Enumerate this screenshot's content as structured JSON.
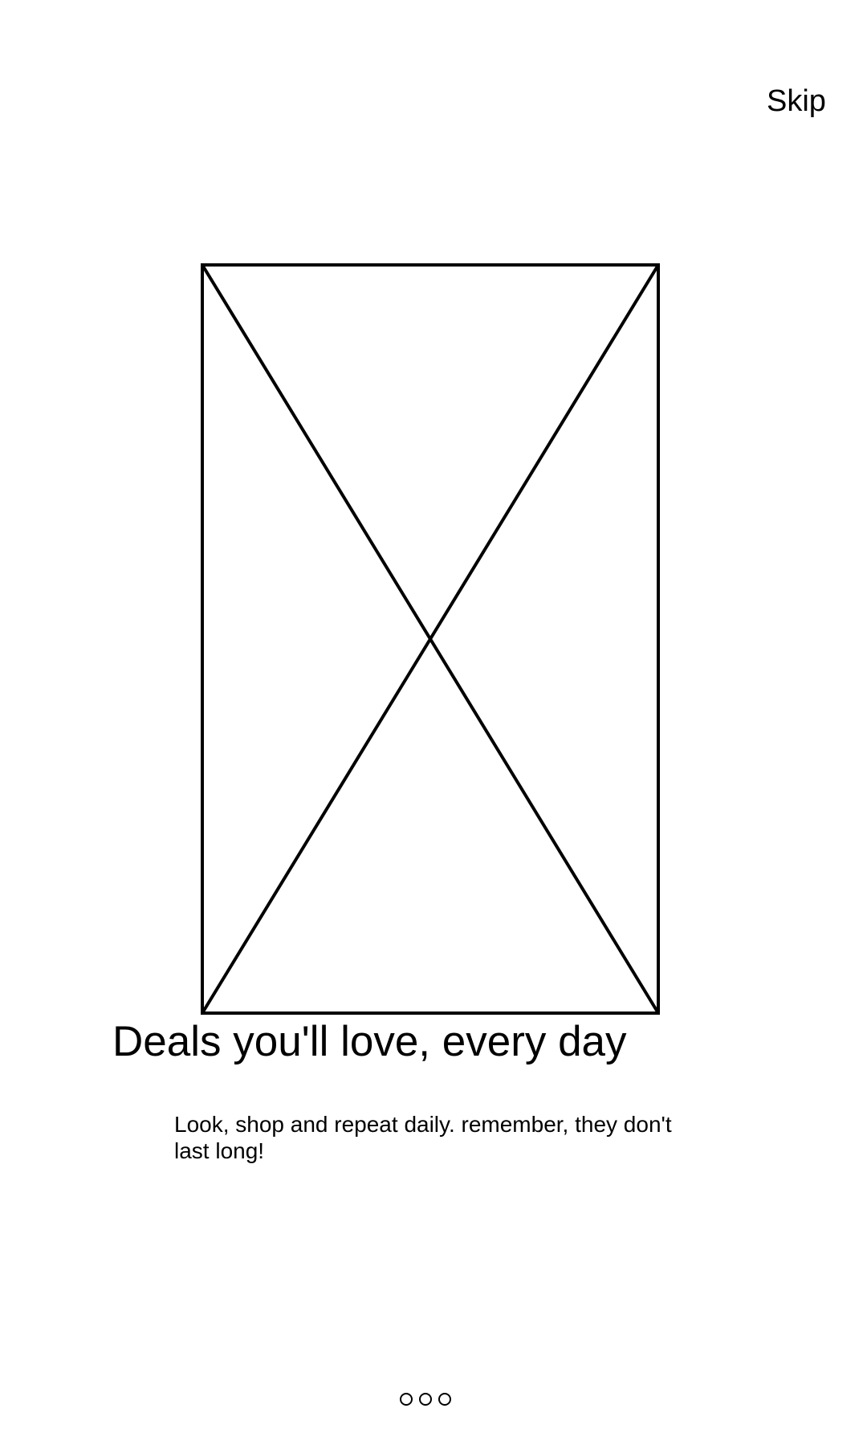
{
  "header": {
    "skip_label": "Skip"
  },
  "hero": {
    "image_icon": "image-placeholder-icon"
  },
  "content": {
    "headline": "Deals you'll love, every day",
    "body": "Look, shop and repeat daily. remember, they don't last long!"
  },
  "pager": {
    "total_pages": 3,
    "dot_icon": "circle-outline-icon"
  },
  "colors": {
    "background": "#ffffff",
    "foreground": "#000000"
  }
}
